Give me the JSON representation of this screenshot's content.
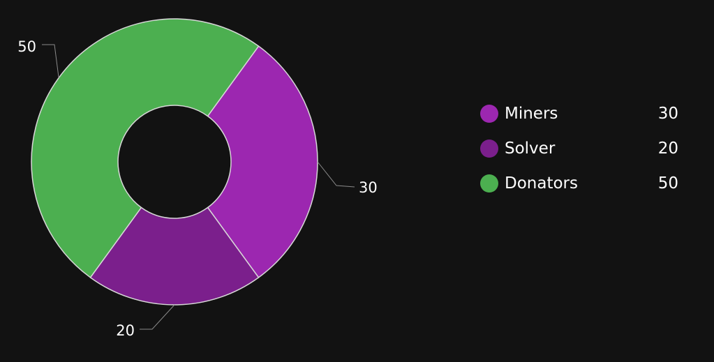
{
  "chart_data": {
    "type": "pie",
    "donut": true,
    "slices": [
      {
        "label": "Miners",
        "value": 30,
        "value_label": "30",
        "color": "#9c27b0"
      },
      {
        "label": "Solver",
        "value": 20,
        "value_label": "20",
        "color": "#7b1f8c"
      },
      {
        "label": "Donators",
        "value": 50,
        "value_label": "50",
        "color": "#4caf50"
      }
    ],
    "legend_position": "right",
    "background": "#121212",
    "slice_border_color": "#d8d8d8"
  }
}
